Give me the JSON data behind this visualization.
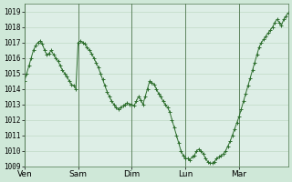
{
  "background_color": "#cfe8d8",
  "plot_bg_color": "#ddeee6",
  "grid_color": "#b8d4be",
  "line_color": "#2d6e2d",
  "ylim": [
    1009,
    1019.5
  ],
  "yticks": [
    1009,
    1010,
    1011,
    1012,
    1013,
    1014,
    1015,
    1016,
    1017,
    1018,
    1019
  ],
  "xtick_labels": [
    "Ven",
    "Sam",
    "Dim",
    "Lun",
    "Mar"
  ],
  "xtick_positions": [
    0,
    24,
    48,
    72,
    96
  ],
  "data_y": [
    1014.5,
    1015.0,
    1015.5,
    1016.0,
    1016.5,
    1016.8,
    1017.0,
    1017.1,
    1016.9,
    1016.5,
    1016.2,
    1016.3,
    1016.5,
    1016.2,
    1016.0,
    1015.8,
    1015.5,
    1015.2,
    1015.0,
    1014.8,
    1014.5,
    1014.3,
    1014.2,
    1014.0,
    1017.0,
    1017.1,
    1017.0,
    1016.9,
    1016.7,
    1016.5,
    1016.3,
    1016.0,
    1015.7,
    1015.4,
    1015.0,
    1014.6,
    1014.2,
    1013.8,
    1013.5,
    1013.2,
    1013.0,
    1012.8,
    1012.7,
    1012.8,
    1012.9,
    1013.0,
    1013.1,
    1013.0,
    1013.0,
    1012.9,
    1013.2,
    1013.5,
    1013.3,
    1013.0,
    1013.5,
    1014.0,
    1014.5,
    1014.4,
    1014.3,
    1014.0,
    1013.7,
    1013.5,
    1013.2,
    1013.0,
    1012.8,
    1012.5,
    1012.0,
    1011.5,
    1011.0,
    1010.5,
    1010.0,
    1009.7,
    1009.5,
    1009.5,
    1009.4,
    1009.6,
    1009.7,
    1010.0,
    1010.1,
    1010.0,
    1009.8,
    1009.5,
    1009.3,
    1009.2,
    1009.2,
    1009.3,
    1009.5,
    1009.6,
    1009.7,
    1009.8,
    1010.0,
    1010.3,
    1010.6,
    1011.0,
    1011.4,
    1011.8,
    1012.2,
    1012.7,
    1013.2,
    1013.7,
    1014.2,
    1014.7,
    1015.2,
    1015.7,
    1016.2,
    1016.7,
    1017.0,
    1017.2,
    1017.4,
    1017.6,
    1017.8,
    1018.0,
    1018.3,
    1018.5,
    1018.3,
    1018.1,
    1018.5,
    1018.7,
    1018.9
  ]
}
